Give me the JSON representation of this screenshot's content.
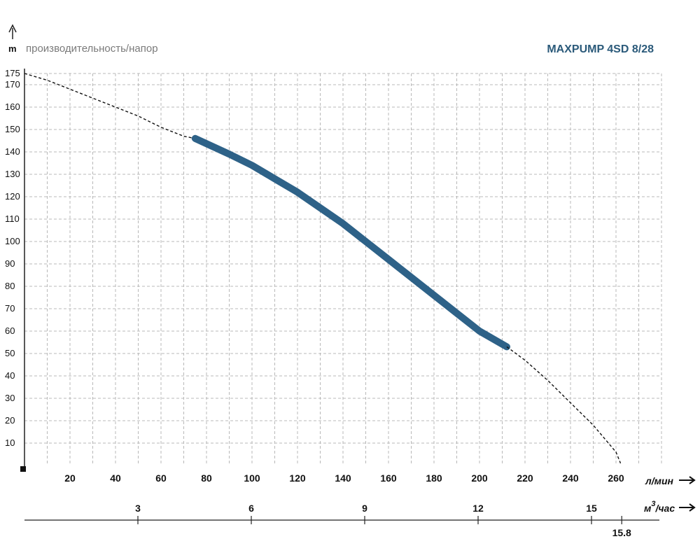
{
  "chart_data": {
    "type": "line",
    "title": "MAXPUMP 4SD 8/28",
    "subtitle": "производительность/напор",
    "ylabel": "m",
    "xlabel": "л/мин",
    "x2label": "м³/час",
    "x2label_base": "м",
    "x2label_sup": "3",
    "x2label_tail": "/час",
    "ylim": [
      0,
      175
    ],
    "xlim": [
      0,
      280
    ],
    "y_ticks": [
      10,
      20,
      30,
      40,
      50,
      60,
      70,
      80,
      90,
      100,
      110,
      120,
      130,
      140,
      150,
      160,
      170,
      175
    ],
    "x_ticks": [
      20,
      40,
      60,
      80,
      100,
      120,
      140,
      160,
      180,
      200,
      220,
      240,
      260
    ],
    "x2_ticks": [
      3,
      6,
      9,
      12,
      15
    ],
    "x2_marker": "15.8",
    "x2_marker_value": 15.8,
    "grid": true,
    "series": [
      {
        "style": "dashed",
        "color": "#111111",
        "x": [
          0,
          10,
          20,
          30,
          40,
          50,
          60,
          70,
          75
        ],
        "y": [
          175,
          172,
          168,
          164,
          160,
          156,
          151,
          147,
          146
        ]
      },
      {
        "style": "solid-thick",
        "color": "#2e6288",
        "x": [
          75,
          90,
          100,
          110,
          120,
          130,
          140,
          150,
          160,
          170,
          180,
          190,
          200,
          212
        ],
        "y": [
          146,
          139,
          134,
          128,
          122,
          115,
          108,
          100,
          92,
          84,
          76,
          68,
          60,
          53
        ]
      },
      {
        "style": "dashed",
        "color": "#111111",
        "x": [
          212,
          220,
          230,
          240,
          250,
          260,
          262
        ],
        "y": [
          53,
          47,
          38,
          28,
          18,
          6,
          1
        ]
      }
    ]
  }
}
